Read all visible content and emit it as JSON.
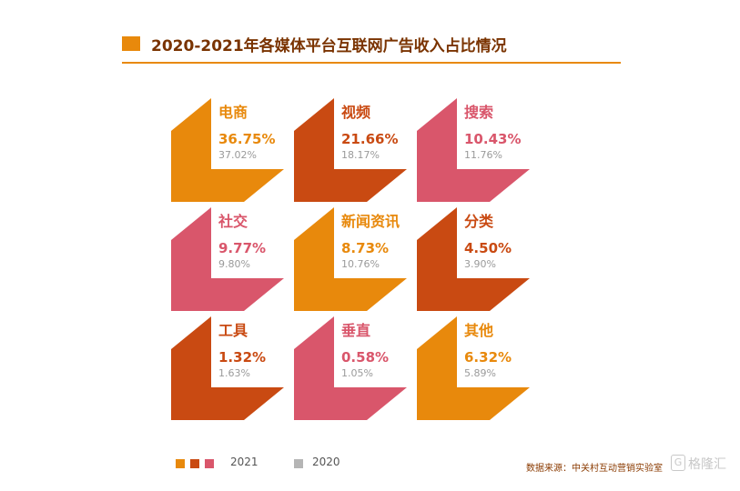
{
  "title": "2020-2021年各媒体平台互联网广告收入占比情况",
  "colors": {
    "accent": "#e8890c",
    "orange": "#e8890c",
    "dark_orange": "#c94a12",
    "pink": "#d9566b",
    "grey_text": "#9a9a9a"
  },
  "chart_data": {
    "type": "table",
    "series": [
      {
        "name": "2021",
        "values": [
          36.75,
          21.66,
          10.43,
          9.77,
          8.73,
          4.5,
          1.32,
          0.58,
          6.32
        ]
      },
      {
        "name": "2020",
        "values": [
          37.02,
          18.17,
          11.76,
          9.8,
          10.76,
          3.9,
          1.63,
          1.05,
          5.89
        ]
      }
    ],
    "categories": [
      "电商",
      "视频",
      "搜索",
      "社交",
      "新闻资讯",
      "分类",
      "工具",
      "垂直",
      "其他"
    ],
    "tiles": [
      {
        "category": "电商",
        "v2021": "36.75%",
        "v2020": "37.02%",
        "color": "#e8890c"
      },
      {
        "category": "视频",
        "v2021": "21.66%",
        "v2020": "18.17%",
        "color": "#c94a12"
      },
      {
        "category": "搜索",
        "v2021": "10.43%",
        "v2020": "11.76%",
        "color": "#d9566b"
      },
      {
        "category": "社交",
        "v2021": "9.77%",
        "v2020": "9.80%",
        "color": "#d9566b"
      },
      {
        "category": "新闻资讯",
        "v2021": "8.73%",
        "v2020": "10.76%",
        "color": "#e8890c"
      },
      {
        "category": "分类",
        "v2021": "4.50%",
        "v2020": "3.90%",
        "color": "#c94a12"
      },
      {
        "category": "工具",
        "v2021": "1.32%",
        "v2020": "1.63%",
        "color": "#c94a12"
      },
      {
        "category": "垂直",
        "v2021": "0.58%",
        "v2020": "1.05%",
        "color": "#d9566b"
      },
      {
        "category": "其他",
        "v2021": "6.32%",
        "v2020": "5.89%",
        "color": "#e8890c"
      }
    ]
  },
  "legend": {
    "label_2021": "2021",
    "label_2020": "2020",
    "swatches_2021": [
      "#e8890c",
      "#c94a12",
      "#d9566b"
    ],
    "swatch_2020": "#b5b5b5"
  },
  "source": "数据来源：中关村互动营销实验室",
  "watermark": "格隆汇",
  "watermark_icon": "G"
}
